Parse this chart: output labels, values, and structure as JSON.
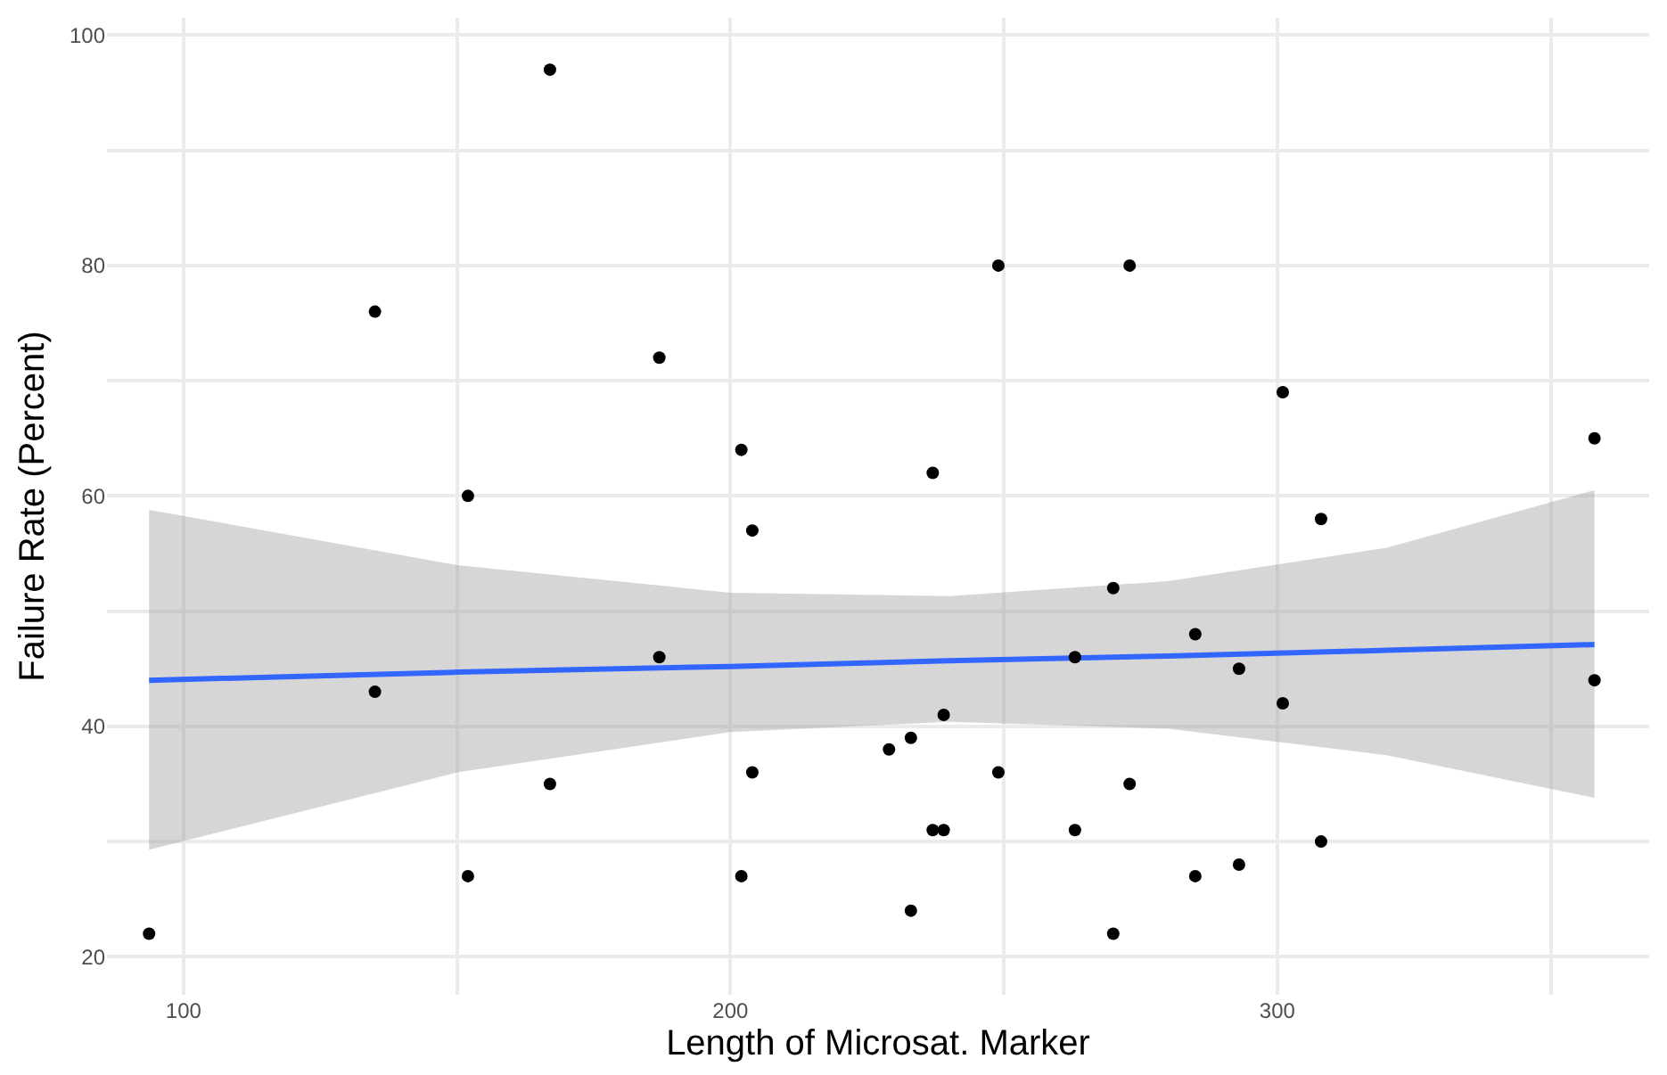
{
  "chart_data": {
    "type": "scatter",
    "xlabel": "Length of Microsat. Marker",
    "ylabel": "Failure Rate (Percent)",
    "xlim": [
      86,
      368
    ],
    "ylim": [
      16.7,
      101.5
    ],
    "xticks": [
      100,
      {
        "value": 150,
        "label": null
      },
      200,
      {
        "value": 250,
        "label": null
      },
      300,
      {
        "value": 350,
        "label": null
      }
    ],
    "yticks": [
      20,
      {
        "value": 30,
        "label": null
      },
      40,
      {
        "value": 50,
        "label": null
      },
      60,
      {
        "value": 70,
        "label": null
      },
      80,
      {
        "value": 90,
        "label": null
      },
      100
    ],
    "grid": true,
    "marker": "circle",
    "series": [
      {
        "color": "#000000",
        "x": [
          93.7,
          135,
          135,
          152,
          152,
          167,
          167,
          187,
          187,
          202,
          202,
          204,
          204,
          229,
          233,
          233,
          237,
          237,
          239,
          239,
          249,
          249,
          263,
          263,
          270,
          270,
          273,
          273,
          285,
          285,
          293,
          293,
          301,
          301,
          308,
          308,
          358,
          358
        ],
        "values": [
          22,
          76,
          43,
          60,
          27,
          97,
          35,
          72,
          46,
          64,
          27,
          57,
          36,
          38,
          39,
          24,
          62,
          31,
          31,
          41,
          80,
          36,
          31,
          46,
          52,
          22,
          80,
          35,
          48,
          27,
          45,
          28,
          69,
          42,
          58,
          30,
          65,
          44
        ]
      },
      {
        "type": "line",
        "color": "#3366ff",
        "marker": "none",
        "line_style": "solid",
        "x": [
          93.7,
          150,
          200,
          240,
          280,
          320,
          358
        ],
        "values": [
          44.0,
          44.7,
          45.2,
          45.7,
          46.1,
          46.6,
          47.1
        ],
        "lower": [
          29.3,
          36.0,
          39.5,
          40.4,
          39.8,
          37.5,
          33.8
        ],
        "upper": [
          58.8,
          54.0,
          51.6,
          51.3,
          52.6,
          55.5,
          60.5
        ]
      }
    ]
  }
}
